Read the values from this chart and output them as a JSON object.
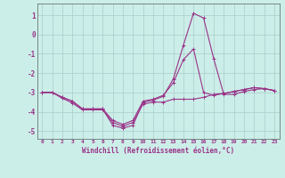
{
  "xlabel": "Windchill (Refroidissement éolien,°C)",
  "background_color": "#cceee8",
  "grid_color": "#aacccc",
  "line_color": "#993388",
  "hours": [
    0,
    1,
    2,
    3,
    4,
    5,
    6,
    7,
    8,
    9,
    10,
    11,
    12,
    13,
    14,
    15,
    16,
    17,
    18,
    19,
    20,
    21,
    22,
    23
  ],
  "s1": [
    -3.0,
    -3.0,
    -3.3,
    -3.55,
    -3.9,
    -3.9,
    -3.9,
    -4.55,
    -4.75,
    -4.55,
    -3.6,
    -3.5,
    -3.5,
    -3.35,
    -3.35,
    -3.35,
    -3.25,
    -3.1,
    -3.05,
    -2.95,
    -2.85,
    -2.75,
    -2.8,
    -2.9
  ],
  "s2": [
    -3.0,
    -3.0,
    -3.25,
    -3.45,
    -3.85,
    -3.85,
    -3.85,
    -4.45,
    -4.65,
    -4.45,
    -3.45,
    -3.35,
    -3.15,
    -2.5,
    -1.3,
    -0.75,
    -3.0,
    -3.15,
    -3.05,
    -2.95,
    -2.85,
    -2.75,
    -2.8,
    -2.9
  ],
  "s3": [
    -3.0,
    -3.0,
    -3.25,
    -3.45,
    -3.85,
    -3.85,
    -3.85,
    -4.7,
    -4.85,
    -4.7,
    -3.5,
    -3.4,
    -3.2,
    -2.3,
    -0.55,
    1.1,
    0.85,
    -1.25,
    -3.1,
    -3.1,
    -2.95,
    -2.85,
    -2.8,
    -2.9
  ],
  "ylim": [
    -5.4,
    1.6
  ],
  "yticks": [
    -5,
    -4,
    -3,
    -2,
    -1,
    0,
    1
  ],
  "xlim": [
    -0.5,
    23.5
  ],
  "xticks": [
    0,
    1,
    2,
    3,
    4,
    5,
    6,
    7,
    8,
    9,
    10,
    11,
    12,
    13,
    14,
    15,
    16,
    17,
    18,
    19,
    20,
    21,
    22,
    23
  ],
  "xticklabels": [
    "0",
    "1",
    "2",
    "3",
    "4",
    "5",
    "6",
    "7",
    "8",
    "9",
    "10",
    "11",
    "12",
    "13",
    "14",
    "15",
    "16",
    "17",
    "18",
    "19",
    "20",
    "21",
    "22",
    "23"
  ]
}
